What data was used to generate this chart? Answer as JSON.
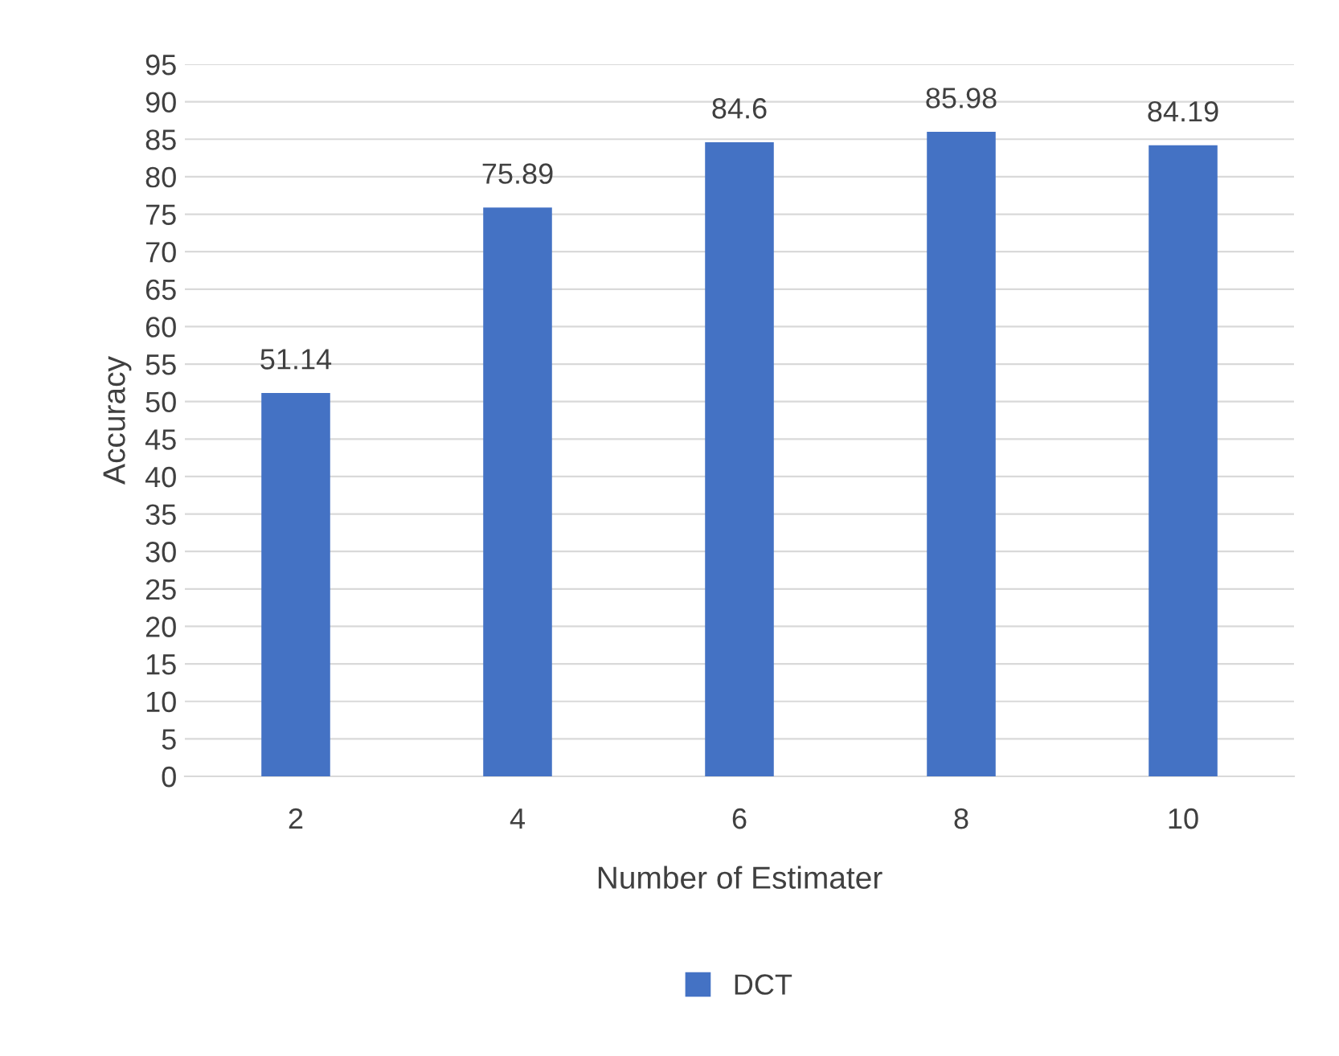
{
  "chart_data": {
    "type": "bar",
    "xlabel": "Number of Estimater",
    "ylabel": "Accuracy",
    "categories": [
      "2",
      "4",
      "6",
      "8",
      "10"
    ],
    "series": [
      {
        "name": "DCT",
        "color": "#4472c4",
        "values": [
          51.14,
          75.89,
          84.6,
          85.98,
          84.19
        ]
      }
    ],
    "ylim": [
      0,
      95
    ],
    "yticks": [
      0,
      5,
      10,
      15,
      20,
      25,
      30,
      35,
      40,
      45,
      50,
      55,
      60,
      65,
      70,
      75,
      80,
      85,
      90,
      95
    ],
    "grid": "y",
    "legend": "bottom",
    "data_labels": true
  }
}
